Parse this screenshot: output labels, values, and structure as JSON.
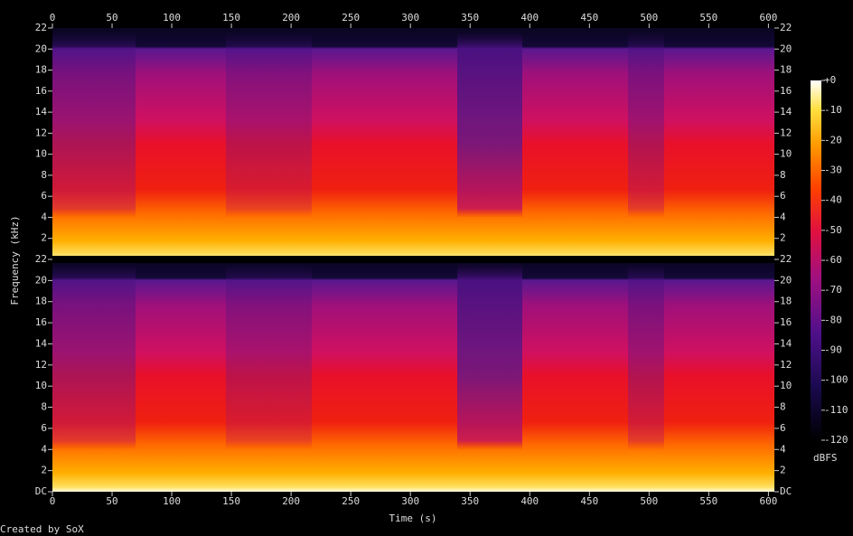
{
  "chart_data": {
    "type": "spectrogram",
    "xlabel": "Time (s)",
    "ylabel": "Frequency (kHz)",
    "footer": "Created by SoX",
    "xlim": [
      0,
      605
    ],
    "xticks": [
      0,
      50,
      100,
      150,
      200,
      250,
      300,
      350,
      400,
      450,
      500,
      550,
      600
    ],
    "channels": [
      {
        "ylim": [
          0,
          22
        ],
        "yticks": [
          2,
          4,
          6,
          8,
          10,
          12,
          14,
          16,
          18,
          20,
          22
        ]
      },
      {
        "ylim": [
          0,
          22
        ],
        "yticks": [
          {
            "value": 0,
            "label": "DC"
          },
          2,
          4,
          6,
          8,
          10,
          12,
          14,
          16,
          18,
          20,
          22
        ]
      }
    ],
    "colorbar": {
      "label": "dBFS",
      "lim": [
        -120,
        0
      ],
      "ticks": [
        {
          "value": 0,
          "label": "+0"
        },
        -10,
        -20,
        -30,
        -40,
        -50,
        -60,
        -70,
        -80,
        -90,
        -100,
        -110,
        -120
      ]
    }
  }
}
